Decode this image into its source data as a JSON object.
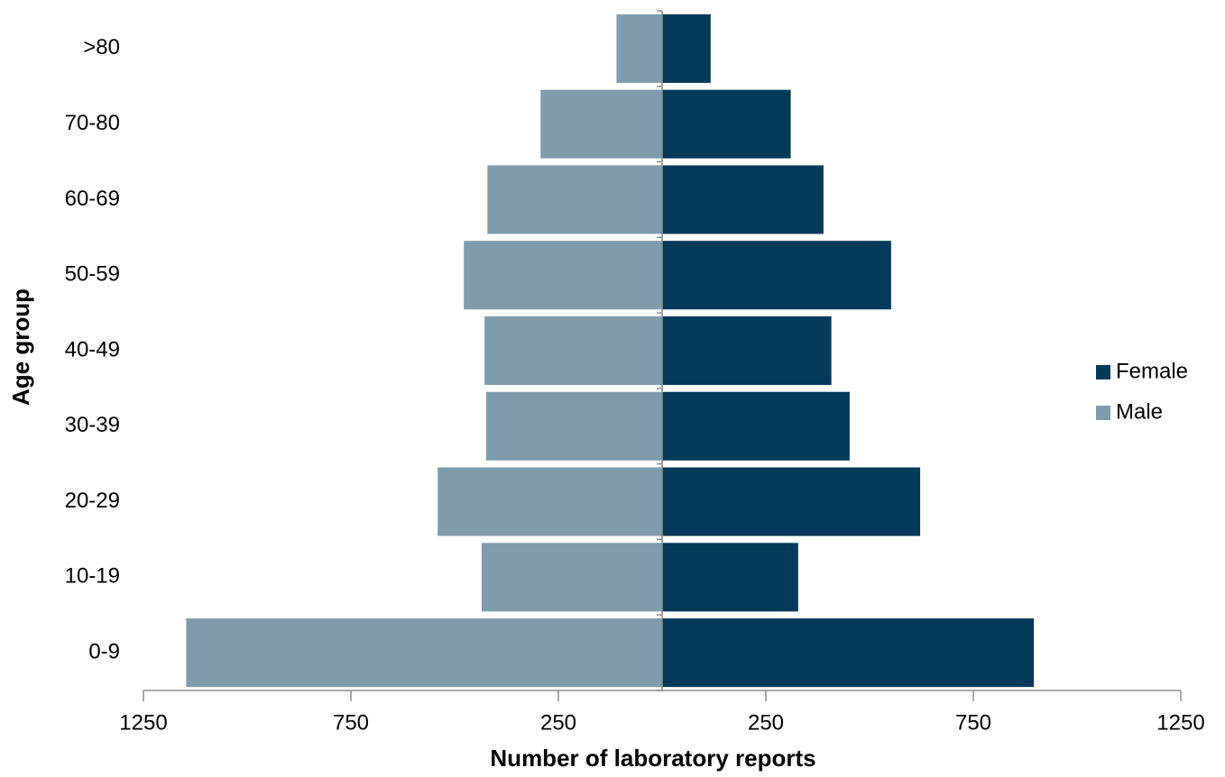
{
  "chart_data": {
    "type": "pyramid",
    "orientation": "horizontal",
    "x_label": "Number of laboratory reports",
    "y_label": "Age group",
    "categories": [
      "0-9",
      "10-19",
      "20-29",
      "30-39",
      "40-49",
      "50-59",
      "60-69",
      "70-80",
      ">80"
    ],
    "series": [
      {
        "name": "Female",
        "color": "#033a5a",
        "values": [
          897,
          329,
          623,
          453,
          409,
          553,
          390,
          311,
          118
        ]
      },
      {
        "name": "Male",
        "color": "#7f9cad",
        "values": [
          -1148,
          -436,
          -542,
          -425,
          -429,
          -479,
          -422,
          -294,
          -111
        ]
      }
    ],
    "xlim": [
      -1250,
      1250
    ],
    "xticks": [
      {
        "value": -1250,
        "label": "1250"
      },
      {
        "value": -750,
        "label": "750"
      },
      {
        "value": -250,
        "label": "250"
      },
      250,
      750,
      1250
    ],
    "legend": "right",
    "grid": false
  }
}
